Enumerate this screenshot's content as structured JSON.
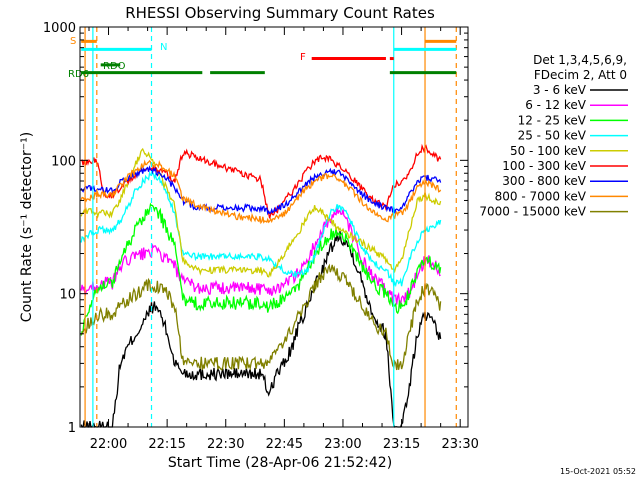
{
  "chart_data": {
    "type": "line",
    "title": "RHESSI Observing Summary Count Rates",
    "xlabel": "Start Time (28-Apr-06 21:52:42)",
    "ylabel": "Count Rate (s⁻¹ detector⁻¹)",
    "y_scale": "log",
    "ylim": [
      1,
      1000
    ],
    "xlim": [
      "21:52:42",
      "23:32:00"
    ],
    "x_unit": "HH:MM",
    "x_ticks": [
      "22:00",
      "22:15",
      "22:30",
      "22:45",
      "23:00",
      "23:15",
      "23:30"
    ],
    "y_ticks": [
      "1",
      "10",
      "100",
      "1000"
    ],
    "grid": false,
    "legend_position": "right",
    "detector_info": [
      "Det 1,3,4,5,6,9,",
      "FDecim 2, Att 0"
    ],
    "footer_date": "15-Oct-2021 05:52",
    "series": [
      {
        "name": "3 - 6 keV",
        "color": "#000000",
        "x": [
          "21:53",
          "21:55",
          "21:57",
          "21:59",
          "22:01",
          "22:03",
          "22:05",
          "22:07",
          "22:09",
          "22:11",
          "22:13",
          "22:15",
          "22:17",
          "22:19",
          "22:21",
          "22:23",
          "22:25",
          "22:27",
          "22:29",
          "22:31",
          "22:33",
          "22:35",
          "22:37",
          "22:39",
          "22:41",
          "22:43",
          "22:45",
          "22:47",
          "22:49",
          "22:51",
          "22:53",
          "22:55",
          "22:57",
          "22:59",
          "23:01",
          "23:03",
          "23:05",
          "23:07",
          "23:09",
          "23:11",
          "23:13",
          "23:15",
          "23:17",
          "23:19",
          "23:21",
          "23:23",
          "23:25"
        ],
        "values": [
          1.0,
          1.0,
          1.0,
          1.0,
          1.0,
          3.0,
          4.0,
          5.0,
          6.0,
          8.0,
          7.5,
          5.0,
          3.0,
          2.6,
          2.5,
          2.5,
          2.5,
          2.5,
          2.5,
          2.5,
          2.5,
          2.5,
          2.5,
          2.5,
          1.8,
          2.5,
          3.0,
          4.0,
          6.0,
          8.0,
          12.0,
          16.0,
          22.0,
          28.0,
          24.0,
          18.0,
          12.0,
          8.0,
          6.0,
          5.0,
          1.0,
          1.0,
          2.0,
          5.0,
          7.0,
          6.0,
          4.5
        ]
      },
      {
        "name": "6 - 12 keV",
        "color": "#ff00ff",
        "x": [
          "21:53",
          "21:55",
          "21:57",
          "21:59",
          "22:01",
          "22:03",
          "22:05",
          "22:07",
          "22:09",
          "22:11",
          "22:13",
          "22:15",
          "22:17",
          "22:19",
          "22:21",
          "22:23",
          "22:25",
          "22:27",
          "22:29",
          "22:31",
          "22:33",
          "22:35",
          "22:37",
          "22:39",
          "22:41",
          "22:43",
          "22:45",
          "22:47",
          "22:49",
          "22:51",
          "22:53",
          "22:55",
          "22:57",
          "22:59",
          "23:01",
          "23:03",
          "23:05",
          "23:07",
          "23:09",
          "23:11",
          "23:13",
          "23:15",
          "23:17",
          "23:19",
          "23:21",
          "23:23",
          "23:25"
        ],
        "values": [
          10.5,
          11.0,
          11.5,
          12.0,
          12.0,
          16.0,
          18.0,
          19.0,
          20.0,
          21.0,
          20.0,
          18.0,
          16.0,
          12.0,
          12.0,
          11.0,
          11.0,
          11.0,
          11.0,
          11.0,
          11.0,
          11.0,
          11.0,
          11.0,
          10.5,
          11.0,
          12.0,
          13.0,
          15.0,
          18.0,
          24.0,
          30.0,
          38.0,
          42.0,
          35.0,
          25.0,
          18.0,
          14.0,
          12.0,
          11.0,
          9.0,
          9.0,
          10.0,
          14.0,
          18.0,
          17.0,
          15.0
        ]
      },
      {
        "name": "12 - 25 keV",
        "color": "#00ff00",
        "x": [
          "21:53",
          "21:55",
          "21:57",
          "21:59",
          "22:01",
          "22:03",
          "22:05",
          "22:07",
          "22:09",
          "22:11",
          "22:13",
          "22:15",
          "22:17",
          "22:19",
          "22:21",
          "22:23",
          "22:25",
          "22:27",
          "22:29",
          "22:31",
          "22:33",
          "22:35",
          "22:37",
          "22:39",
          "22:41",
          "22:43",
          "22:45",
          "22:47",
          "22:49",
          "22:51",
          "22:53",
          "22:55",
          "22:57",
          "22:59",
          "23:01",
          "23:03",
          "23:05",
          "23:07",
          "23:09",
          "23:11",
          "23:13",
          "23:15",
          "23:17",
          "23:19",
          "23:21",
          "23:23",
          "23:25"
        ],
        "values": [
          5.0,
          8.0,
          11.0,
          12.0,
          12.0,
          18.0,
          24.0,
          30.0,
          38.0,
          45.0,
          40.0,
          30.0,
          22.0,
          9.0,
          8.5,
          8.5,
          8.5,
          8.5,
          8.5,
          8.5,
          8.5,
          8.5,
          8.5,
          8.5,
          8.0,
          8.5,
          9.0,
          10.0,
          12.0,
          16.0,
          20.0,
          24.0,
          28.0,
          30.0,
          26.0,
          20.0,
          16.0,
          13.0,
          11.0,
          10.0,
          8.0,
          8.0,
          10.0,
          14.0,
          18.0,
          17.0,
          15.0
        ]
      },
      {
        "name": "25 - 50 keV",
        "color": "#00ffff",
        "x": [
          "21:53",
          "21:55",
          "21:57",
          "21:59",
          "22:01",
          "22:03",
          "22:05",
          "22:07",
          "22:09",
          "22:11",
          "22:13",
          "22:15",
          "22:17",
          "22:19",
          "22:21",
          "22:23",
          "22:25",
          "22:27",
          "22:29",
          "22:31",
          "22:33",
          "22:35",
          "22:37",
          "22:39",
          "22:41",
          "22:43",
          "22:45",
          "22:47",
          "22:49",
          "22:51",
          "22:53",
          "22:55",
          "22:57",
          "22:59",
          "23:01",
          "23:03",
          "23:05",
          "23:07",
          "23:09",
          "23:11",
          "23:13",
          "23:15",
          "23:17",
          "23:19",
          "23:21",
          "23:23",
          "23:25"
        ],
        "values": [
          25.0,
          28.0,
          30.0,
          30.0,
          30.0,
          35.0,
          45.0,
          60.0,
          70.0,
          80.0,
          72.0,
          55.0,
          40.0,
          20.0,
          19.0,
          19.0,
          19.0,
          19.0,
          19.0,
          19.0,
          19.0,
          19.0,
          19.0,
          19.0,
          18.0,
          16.0,
          15.0,
          14.0,
          14.0,
          15.0,
          20.0,
          30.0,
          42.0,
          45.0,
          40.0,
          30.0,
          22.0,
          18.0,
          16.0,
          15.0,
          12.0,
          12.0,
          18.0,
          25.0,
          30.0,
          32.0,
          35.0
        ]
      },
      {
        "name": "50 - 100 keV",
        "color": "#cccc00",
        "x": [
          "21:53",
          "21:55",
          "21:57",
          "21:59",
          "22:01",
          "22:03",
          "22:05",
          "22:07",
          "22:09",
          "22:11",
          "22:13",
          "22:15",
          "22:17",
          "22:19",
          "22:21",
          "22:23",
          "22:25",
          "22:27",
          "22:29",
          "22:31",
          "22:33",
          "22:35",
          "22:37",
          "22:39",
          "22:41",
          "22:43",
          "22:45",
          "22:47",
          "22:49",
          "22:51",
          "22:53",
          "22:55",
          "22:57",
          "22:59",
          "23:01",
          "23:03",
          "23:05",
          "23:07",
          "23:09",
          "23:11",
          "23:13",
          "23:15",
          "23:17",
          "23:19",
          "23:21",
          "23:23",
          "23:25"
        ],
        "values": [
          40.0,
          42.0,
          40.0,
          40.0,
          40.0,
          50.0,
          70.0,
          95.0,
          120.0,
          100.0,
          80.0,
          60.0,
          45.0,
          18.0,
          16.0,
          15.0,
          15.0,
          15.0,
          15.0,
          15.0,
          15.0,
          15.0,
          15.0,
          15.0,
          14.0,
          16.0,
          20.0,
          25.0,
          30.0,
          38.0,
          45.0,
          40.0,
          35.0,
          30.0,
          28.0,
          26.0,
          24.0,
          22.0,
          20.0,
          18.0,
          15.0,
          18.0,
          30.0,
          50.0,
          55.0,
          50.0,
          48.0
        ]
      },
      {
        "name": "100 - 300 keV",
        "color": "#ff0000",
        "x": [
          "21:53",
          "21:55",
          "21:57",
          "21:59",
          "22:01",
          "22:03",
          "22:05",
          "22:07",
          "22:09",
          "22:11",
          "22:13",
          "22:15",
          "22:17",
          "22:19",
          "22:21",
          "22:23",
          "22:25",
          "22:27",
          "22:29",
          "22:31",
          "22:33",
          "22:35",
          "22:37",
          "22:39",
          "22:41",
          "22:43",
          "22:45",
          "22:47",
          "22:49",
          "22:51",
          "22:53",
          "22:55",
          "22:57",
          "22:59",
          "23:01",
          "23:03",
          "23:05",
          "23:07",
          "23:09",
          "23:11",
          "23:13",
          "23:15",
          "23:17",
          "23:19",
          "23:21",
          "23:23",
          "23:25"
        ],
        "values": [
          95.0,
          100.0,
          100.0,
          55.0,
          55.0,
          62.0,
          70.0,
          78.0,
          85.0,
          88.0,
          85.0,
          78.0,
          70.0,
          115.0,
          110.0,
          105.0,
          100.0,
          95.0,
          90.0,
          86.0,
          82.0,
          78.0,
          75.0,
          72.0,
          38.0,
          42.0,
          50.0,
          58.0,
          70.0,
          85.0,
          100.0,
          105.0,
          100.0,
          90.0,
          80.0,
          70.0,
          60.0,
          52.0,
          48.0,
          45.0,
          65.0,
          68.0,
          80.0,
          115.0,
          125.0,
          110.0,
          100.0
        ]
      },
      {
        "name": "300 - 800 keV",
        "color": "#0000ff",
        "x": [
          "21:53",
          "21:55",
          "21:57",
          "21:59",
          "22:01",
          "22:03",
          "22:05",
          "22:07",
          "22:09",
          "22:11",
          "22:13",
          "22:15",
          "22:17",
          "22:19",
          "22:21",
          "22:23",
          "22:25",
          "22:27",
          "22:29",
          "22:31",
          "22:33",
          "22:35",
          "22:37",
          "22:39",
          "22:41",
          "22:43",
          "22:45",
          "22:47",
          "22:49",
          "22:51",
          "22:53",
          "22:55",
          "22:57",
          "22:59",
          "23:01",
          "23:03",
          "23:05",
          "23:07",
          "23:09",
          "23:11",
          "23:13",
          "23:15",
          "23:17",
          "23:19",
          "23:21",
          "23:23",
          "23:25"
        ],
        "values": [
          60.0,
          62.0,
          62.0,
          60.0,
          60.0,
          68.0,
          75.0,
          80.0,
          84.0,
          85.0,
          80.0,
          72.0,
          62.0,
          50.0,
          46.0,
          45.0,
          44.0,
          44.0,
          44.0,
          44.0,
          44.0,
          44.0,
          44.0,
          44.0,
          42.0,
          43.0,
          46.0,
          52.0,
          60.0,
          68.0,
          75.0,
          80.0,
          82.0,
          80.0,
          72.0,
          64.0,
          56.0,
          50.0,
          46.0,
          44.0,
          42.0,
          45.0,
          55.0,
          70.0,
          75.0,
          72.0,
          68.0
        ]
      },
      {
        "name": "800 - 7000 keV",
        "color": "#ff8800",
        "x": [
          "21:53",
          "21:55",
          "21:57",
          "21:59",
          "22:01",
          "22:03",
          "22:05",
          "22:07",
          "22:09",
          "22:11",
          "22:13",
          "22:15",
          "22:17",
          "22:19",
          "22:21",
          "22:23",
          "22:25",
          "22:27",
          "22:29",
          "22:31",
          "22:33",
          "22:35",
          "22:37",
          "22:39",
          "22:41",
          "22:43",
          "22:45",
          "22:47",
          "22:49",
          "22:51",
          "22:53",
          "22:55",
          "22:57",
          "22:59",
          "23:01",
          "23:03",
          "23:05",
          "23:07",
          "23:09",
          "23:11",
          "23:13",
          "23:15",
          "23:17",
          "23:19",
          "23:21",
          "23:23",
          "23:25"
        ],
        "values": [
          50.0,
          52.0,
          55.0,
          55.0,
          55.0,
          65.0,
          75.0,
          85.0,
          92.0,
          95.0,
          92.0,
          85.0,
          75.0,
          52.0,
          48.0,
          46.0,
          44.0,
          42.0,
          40.0,
          39.0,
          38.0,
          37.0,
          37.0,
          36.0,
          35.0,
          37.0,
          40.0,
          46.0,
          55.0,
          63.0,
          70.0,
          75.0,
          76.0,
          72.0,
          64.0,
          56.0,
          48.0,
          42.0,
          38.0,
          36.0,
          38.0,
          40.0,
          48.0,
          62.0,
          68.0,
          65.0,
          60.0
        ]
      },
      {
        "name": "7000 - 15000 keV",
        "color": "#808000",
        "x": [
          "21:53",
          "21:55",
          "21:57",
          "21:59",
          "22:01",
          "22:03",
          "22:05",
          "22:07",
          "22:09",
          "22:11",
          "22:13",
          "22:15",
          "22:17",
          "22:19",
          "22:21",
          "22:23",
          "22:25",
          "22:27",
          "22:29",
          "22:31",
          "22:33",
          "22:35",
          "22:37",
          "22:39",
          "22:41",
          "22:43",
          "22:45",
          "22:47",
          "22:49",
          "22:51",
          "22:53",
          "22:55",
          "22:57",
          "22:59",
          "23:01",
          "23:03",
          "23:05",
          "23:07",
          "23:09",
          "23:11",
          "23:13",
          "23:15",
          "23:17",
          "23:19",
          "23:21",
          "23:23",
          "23:25"
        ],
        "values": [
          5.0,
          6.0,
          7.0,
          7.0,
          7.0,
          8.0,
          9.0,
          10.0,
          11.0,
          12.0,
          11.0,
          10.0,
          8.0,
          3.2,
          3.0,
          3.0,
          3.0,
          3.0,
          3.0,
          3.0,
          3.0,
          3.0,
          3.0,
          3.0,
          3.0,
          3.5,
          4.5,
          5.5,
          7.0,
          9.0,
          12.0,
          14.0,
          15.0,
          14.0,
          12.0,
          10.0,
          8.0,
          6.5,
          5.5,
          5.0,
          3.0,
          3.0,
          5.0,
          9.0,
          11.0,
          10.0,
          8.0
        ]
      }
    ],
    "flags": [
      {
        "name": "S",
        "color": "#ff8800",
        "y": 780,
        "segments": [
          [
            "21:53",
            "21:57"
          ],
          [
            "23:21",
            "23:29"
          ]
        ]
      },
      {
        "name": "N",
        "color": "#00ffff",
        "y": 680,
        "segments": [
          [
            "21:53",
            "22:11"
          ],
          [
            "23:13",
            "23:29"
          ]
        ]
      },
      {
        "name": "F",
        "color": "#ff0000",
        "y": 580,
        "segments": [
          [
            "22:52",
            "23:11"
          ],
          [
            "23:12",
            "23:13"
          ]
        ]
      },
      {
        "name": "RDO",
        "color": "#008000",
        "y": 520,
        "segments": [
          [
            "21:58",
            "22:03"
          ]
        ]
      },
      {
        "name": "RD6",
        "color": "#008000",
        "y": 455,
        "segments": [
          [
            "21:53",
            "22:24"
          ],
          [
            "22:26",
            "22:40"
          ],
          [
            "23:12",
            "23:29"
          ]
        ]
      }
    ],
    "vertical_lines": [
      {
        "time": "21:54",
        "color": "#ff8800",
        "style": "solid"
      },
      {
        "time": "21:56",
        "color": "#00ffff",
        "style": "solid"
      },
      {
        "time": "21:57",
        "color": "#ff8800",
        "style": "dashed"
      },
      {
        "time": "22:11",
        "color": "#00ffff",
        "style": "dashed"
      },
      {
        "time": "23:13",
        "color": "#00ffff",
        "style": "solid"
      },
      {
        "time": "23:21",
        "color": "#ff8800",
        "style": "solid"
      },
      {
        "time": "23:29",
        "color": "#ff8800",
        "style": "dashed"
      }
    ]
  }
}
